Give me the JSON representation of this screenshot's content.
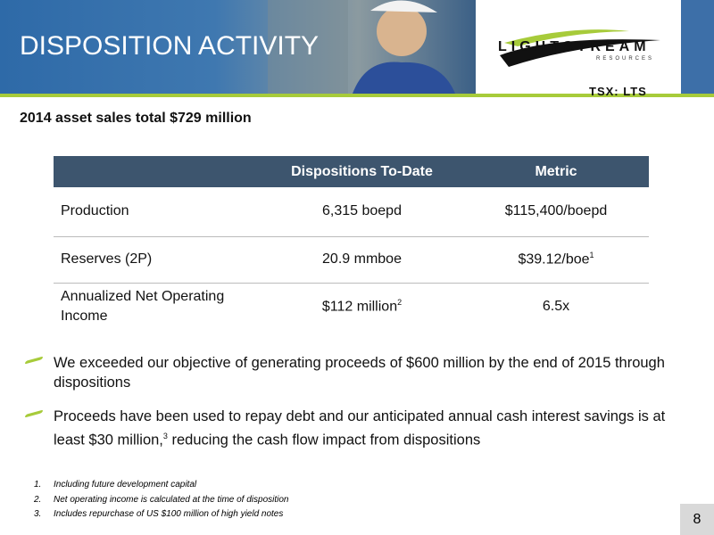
{
  "header": {
    "title": "DISPOSITION ACTIVITY",
    "logo_name": "LIGHTSTREAM",
    "logo_sub": "RESOURCES",
    "ticker": "TSX: LTS"
  },
  "subtitle": "2014 asset sales total $729 million",
  "table": {
    "columns": [
      "Dispositions To-Date",
      "Metric"
    ],
    "rows": [
      {
        "label": "Production",
        "cells": [
          {
            "text": "6,315 boepd"
          },
          {
            "text": "$115,400/boepd"
          }
        ]
      },
      {
        "label": "Reserves (2P)",
        "cells": [
          {
            "text": "20.9 mmboe"
          },
          {
            "text": "$39.12/boe",
            "note": "1"
          }
        ]
      },
      {
        "label": "Annualized Net Operating Income",
        "cells": [
          {
            "text": "$112 million",
            "note": "2"
          },
          {
            "text": "6.5x"
          }
        ]
      }
    ]
  },
  "bullets": [
    {
      "text": "We exceeded our objective of generating proceeds of $600 million by the end of 2015 through dispositions"
    },
    {
      "text": "Proceeds have been used to repay debt and our anticipated annual cash interest savings is at least $30 million,",
      "note": "3",
      "text_after": " reducing the cash flow impact from dispositions"
    }
  ],
  "footnotes": [
    {
      "number": "1.",
      "text": "Including future development capital"
    },
    {
      "number": "2.",
      "text": "Net operating income is calculated at the time of disposition"
    },
    {
      "number": "3.",
      "text": "Includes repurchase of US $100 million of high yield notes"
    }
  ],
  "page_number": "8"
}
